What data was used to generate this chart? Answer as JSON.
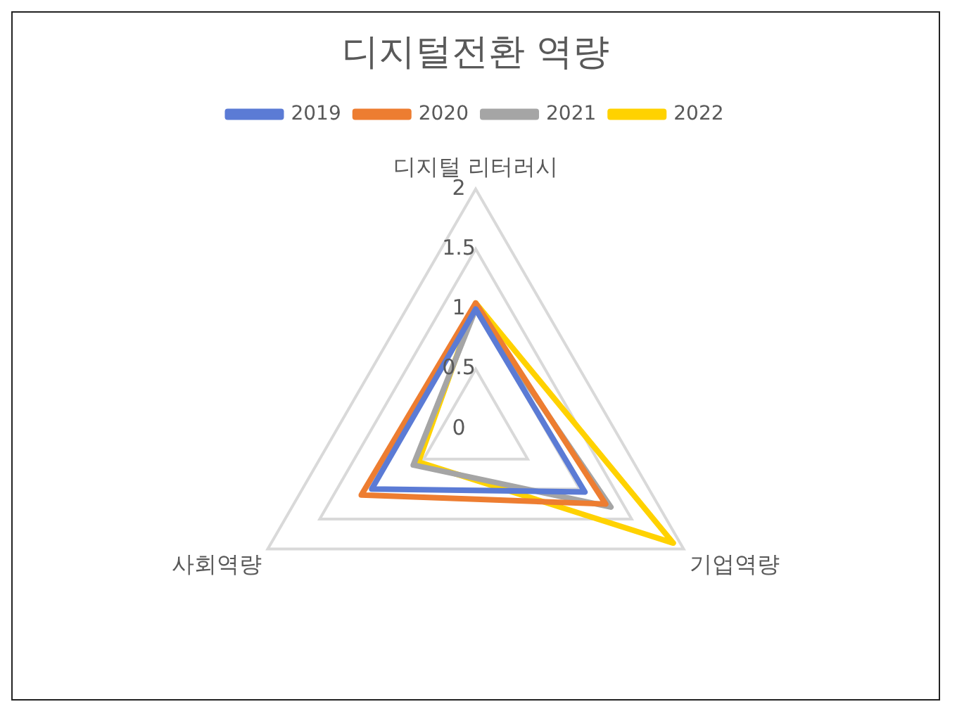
{
  "chart_data": {
    "type": "radar",
    "title": "디지털전환 역량",
    "categories": [
      "디지털 리터러시",
      "기업역량",
      "사회역량"
    ],
    "series": [
      {
        "name": "2019",
        "color": "#5b7bd5",
        "values": [
          1.0,
          1.05,
          1.0
        ]
      },
      {
        "name": "2020",
        "color": "#ed7d31",
        "values": [
          1.05,
          1.25,
          1.1
        ]
      },
      {
        "name": "2021",
        "color": "#a5a5a5",
        "values": [
          1.0,
          1.3,
          0.6
        ]
      },
      {
        "name": "2022",
        "color": "#ffd200",
        "values": [
          1.05,
          1.9,
          0.55
        ]
      }
    ],
    "ylim": [
      0,
      2
    ],
    "yticks": [
      0,
      0.5,
      1,
      1.5,
      2
    ],
    "grid": true,
    "legend": "top"
  }
}
